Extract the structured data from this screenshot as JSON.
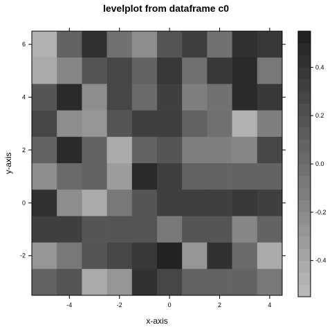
{
  "chart_data": {
    "type": "heatmap",
    "title": "levelplot from dataframe c0",
    "xlabel": "x-axis",
    "ylabel": "y-axis",
    "xlim": [
      -5.5,
      4.5
    ],
    "ylim": [
      -3.5,
      6.5
    ],
    "x": [
      -5,
      -4,
      -3,
      -2,
      -1,
      0,
      1,
      2,
      3,
      4
    ],
    "y": [
      6,
      5,
      4,
      3,
      2,
      1,
      0,
      -1,
      -2,
      -3
    ],
    "x_ticks": [
      -4,
      -2,
      0,
      2,
      4
    ],
    "y_ticks": [
      6,
      4,
      2,
      0,
      -2
    ],
    "x_tick_labels": [
      "-4",
      "-2",
      "0",
      "2",
      "4"
    ],
    "y_tick_labels": [
      "6",
      "4",
      "2",
      "0",
      "-2"
    ],
    "values": [
      [
        -0.5,
        0.1,
        0.4,
        -0.05,
        -0.25,
        0.15,
        0.3,
        -0.05,
        0.4,
        0.35
      ],
      [
        -0.45,
        -0.2,
        0.15,
        0.25,
        0.05,
        0.35,
        -0.05,
        0.35,
        0.45,
        -0.1
      ],
      [
        0.2,
        0.45,
        -0.25,
        0.25,
        0.0,
        0.3,
        -0.15,
        -0.05,
        0.45,
        0.35
      ],
      [
        0.25,
        -0.25,
        -0.3,
        0.2,
        0.3,
        0.3,
        0.1,
        -0.05,
        -0.5,
        -0.15
      ],
      [
        0.1,
        0.45,
        0.05,
        -0.45,
        0.1,
        0.15,
        -0.15,
        -0.15,
        -0.2,
        0.25
      ],
      [
        -0.25,
        0.0,
        0.1,
        -0.35,
        0.45,
        0.3,
        0.05,
        0.05,
        0.05,
        0.1
      ],
      [
        0.4,
        -0.25,
        -0.45,
        -0.1,
        0.15,
        0.3,
        0.3,
        0.3,
        0.35,
        0.3
      ],
      [
        0.3,
        0.3,
        0.2,
        0.2,
        0.2,
        -0.1,
        0.2,
        0.2,
        -0.2,
        0.05
      ],
      [
        -0.3,
        -0.1,
        0.2,
        0.25,
        0.35,
        0.5,
        -0.3,
        0.4,
        0.0,
        -0.45
      ],
      [
        0.05,
        0.15,
        -0.45,
        -0.3,
        0.4,
        0.25,
        0.1,
        0.1,
        0.05,
        -0.1
      ]
    ],
    "colorbar": {
      "range": [
        -0.55,
        0.55
      ],
      "ticks": [
        0.4,
        0.2,
        0.0,
        -0.2,
        -0.4
      ],
      "tick_labels": [
        "0.4",
        "0.2",
        "0.0",
        "-0.2",
        "-0.4"
      ],
      "n_levels": 22,
      "color_low": "#b8b8b8",
      "color_high": "#232323"
    }
  }
}
